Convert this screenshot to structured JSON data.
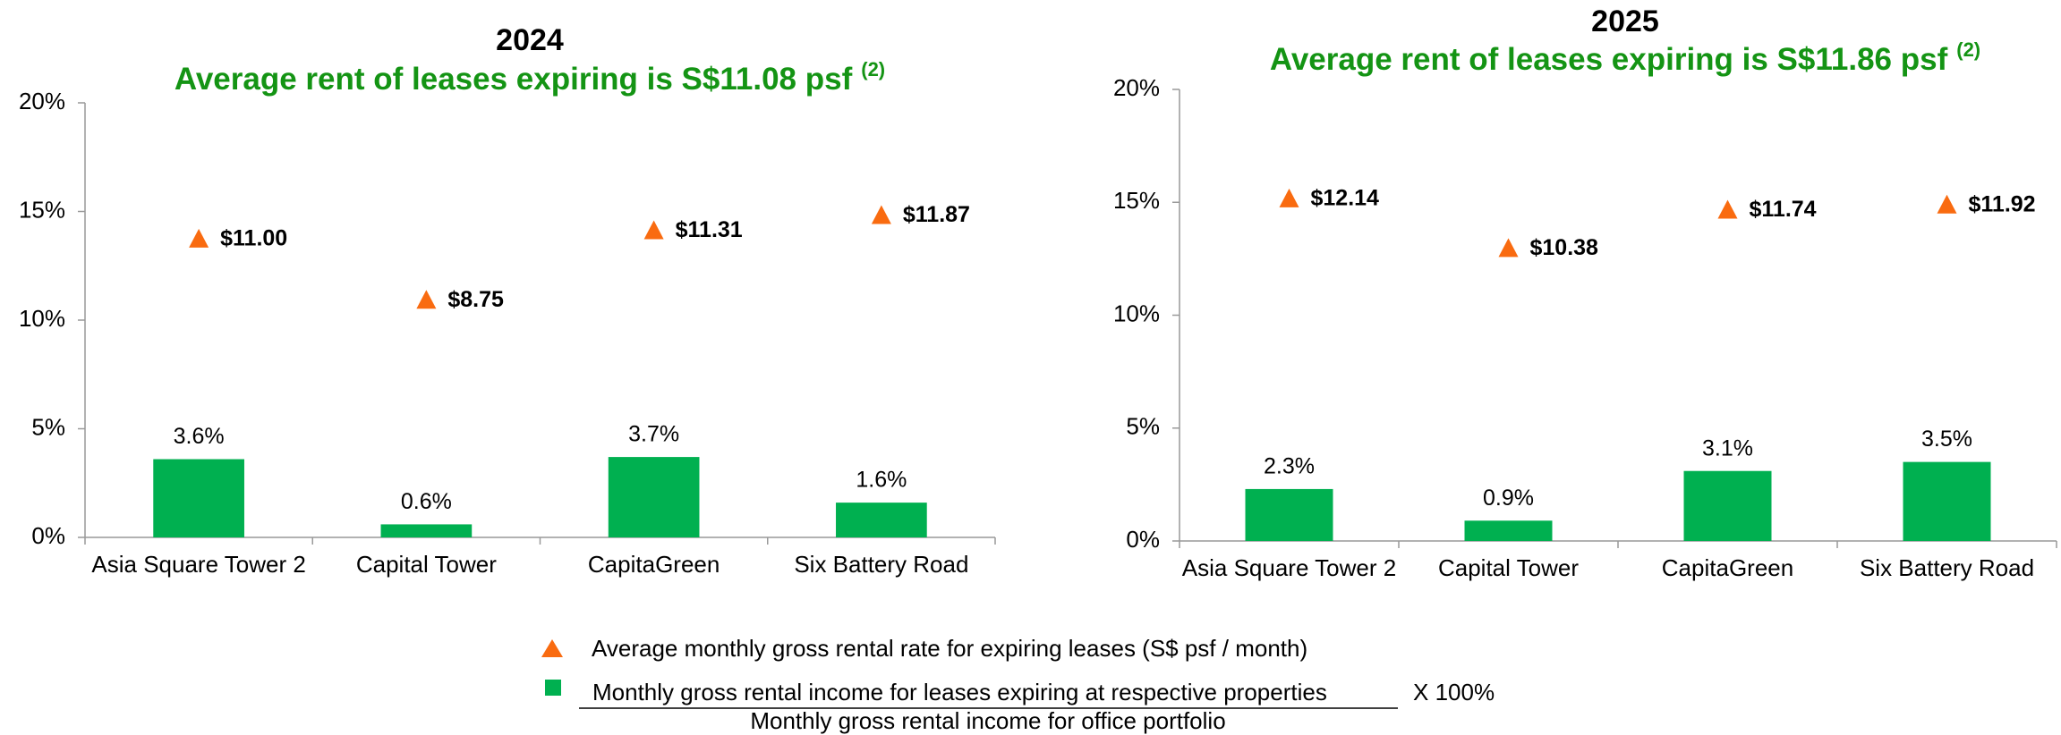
{
  "chart_data": [
    {
      "type": "bar",
      "title": "2024",
      "subtitle": "Average rent of leases expiring is S$11.08 psf",
      "subtitle_note": "(2)",
      "categories": [
        "Asia Square Tower 2",
        "Capital Tower",
        "CapitaGreen",
        "Six Battery Road"
      ],
      "series": [
        {
          "color": "#00b050",
          "values": [
            3.6,
            0.6,
            3.7,
            1.6
          ],
          "value_labels": [
            "3.6%",
            "0.6%",
            "3.7%",
            "1.6%"
          ]
        },
        {
          "color": "#f96b10",
          "axis": "y2",
          "values": [
            11.0,
            8.75,
            11.31,
            11.87
          ],
          "value_labels": [
            "$11.00",
            "$8.75",
            "$11.31",
            "$11.87"
          ]
        }
      ],
      "ylim": [
        0,
        20
      ],
      "yticks": [
        {
          "value": 0,
          "label": "0%"
        },
        {
          "value": 5,
          "label": "5%"
        },
        {
          "value": 10,
          "label": "10%"
        },
        {
          "value": 15,
          "label": "15%"
        },
        {
          "value": 20,
          "label": "20%"
        }
      ],
      "y2lim": [
        0,
        16
      ]
    },
    {
      "type": "bar",
      "title": "2025",
      "subtitle": "Average rent of leases expiring is S$11.86 psf",
      "subtitle_note": "(2)",
      "categories": [
        "Asia Square Tower 2",
        "Capital Tower",
        "CapitaGreen",
        "Six Battery Road"
      ],
      "series": [
        {
          "color": "#00b050",
          "values": [
            2.3,
            0.9,
            3.1,
            3.5
          ],
          "value_labels": [
            "2.3%",
            "0.9%",
            "3.1%",
            "3.5%"
          ]
        },
        {
          "color": "#f96b10",
          "axis": "y2",
          "values": [
            12.14,
            10.38,
            11.74,
            11.92
          ],
          "value_labels": [
            "$12.14",
            "$10.38",
            "$11.74",
            "$11.92"
          ]
        }
      ],
      "ylim": [
        0,
        20
      ],
      "yticks": [
        {
          "value": 0,
          "label": "0%"
        },
        {
          "value": 5,
          "label": "5%"
        },
        {
          "value": 10,
          "label": "10%"
        },
        {
          "value": 15,
          "label": "15%"
        },
        {
          "value": 20,
          "label": "20%"
        }
      ],
      "y2lim": [
        0,
        16
      ]
    }
  ],
  "legend": {
    "triangle_label": "Average monthly gross rental rate for expiring leases (S$ psf / month)",
    "square_numerator": "Monthly gross rental income for leases expiring at respective properties",
    "square_denominator": "Monthly gross rental income for office portfolio",
    "square_multiplier": "X 100%"
  }
}
